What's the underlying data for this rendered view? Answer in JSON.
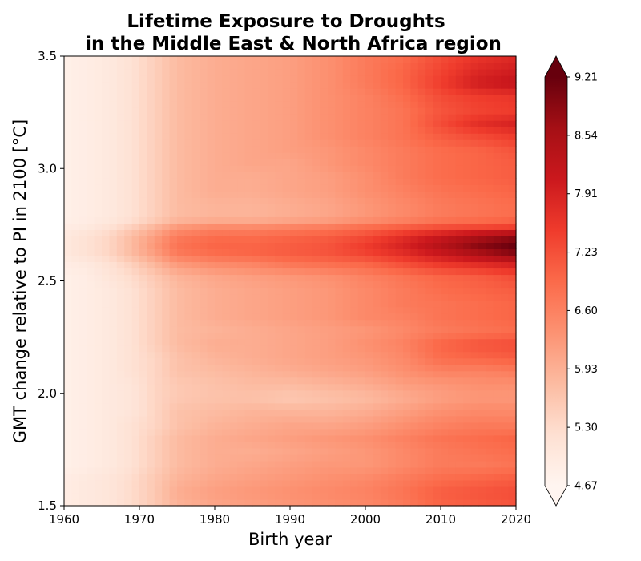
{
  "chart_data": {
    "type": "heatmap",
    "title_line1": "Lifetime Exposure to Droughts",
    "title_line2": "in the Middle East & North Africa region",
    "xlabel": "Birth year",
    "ylabel": "GMT change relative to PI in 2100 [°C]",
    "xlim": [
      1960,
      2020
    ],
    "ylim": [
      1.5,
      3.5
    ],
    "x_ticks": [
      "1960",
      "1970",
      "1980",
      "1990",
      "2000",
      "2010",
      "2020"
    ],
    "y_ticks": [
      "1.5",
      "2.0",
      "2.5",
      "3.0",
      "3.5"
    ],
    "colorbar": {
      "ticks": [
        "4.67",
        "5.30",
        "5.93",
        "6.60",
        "7.23",
        "7.91",
        "8.54",
        "9.21"
      ],
      "min": 4.67,
      "max": 9.21,
      "extend": "both",
      "colormap": "Reds"
    },
    "x": [
      1960,
      1963,
      1966,
      1969,
      1972,
      1975,
      1980,
      1985,
      1990,
      1995,
      2000,
      2005,
      2010,
      2015,
      2020
    ],
    "y": [
      1.5,
      1.56,
      1.62,
      1.68,
      1.74,
      1.8,
      1.86,
      1.92,
      1.98,
      2.04,
      2.1,
      2.16,
      2.22,
      2.28,
      2.34,
      2.4,
      2.46,
      2.52,
      2.58,
      2.62,
      2.66,
      2.7,
      2.74,
      2.78,
      2.84,
      2.9,
      2.96,
      3.02,
      3.08,
      3.14,
      3.2,
      3.26,
      3.32,
      3.38,
      3.44,
      3.5
    ],
    "z": [
      [
        4.9,
        5.0,
        5.1,
        5.3,
        5.6,
        5.9,
        6.1,
        6.2,
        6.3,
        6.4,
        6.5,
        6.7,
        7.0,
        7.1,
        7.2
      ],
      [
        4.9,
        5.0,
        5.1,
        5.3,
        5.6,
        6.0,
        6.2,
        6.3,
        6.4,
        6.5,
        6.6,
        6.8,
        7.1,
        7.2,
        7.3
      ],
      [
        4.9,
        5.0,
        5.1,
        5.3,
        5.6,
        5.9,
        6.1,
        6.2,
        6.3,
        6.4,
        6.5,
        6.7,
        6.9,
        7.0,
        7.1
      ],
      [
        4.8,
        4.9,
        5.0,
        5.2,
        5.5,
        5.8,
        6.0,
        6.1,
        6.2,
        6.3,
        6.3,
        6.5,
        6.7,
        6.7,
        6.8
      ],
      [
        4.8,
        4.9,
        5.0,
        5.2,
        5.5,
        5.8,
        6.0,
        6.0,
        6.1,
        6.2,
        6.3,
        6.5,
        6.7,
        6.8,
        6.9
      ],
      [
        4.8,
        4.9,
        5.0,
        5.2,
        5.5,
        5.8,
        6.0,
        6.1,
        6.2,
        6.3,
        6.4,
        6.6,
        6.8,
        6.9,
        7.0
      ],
      [
        4.8,
        4.9,
        5.0,
        5.2,
        5.4,
        5.7,
        5.9,
        6.0,
        6.1,
        6.1,
        6.2,
        6.4,
        6.6,
        6.7,
        6.7
      ],
      [
        4.8,
        4.9,
        5.0,
        5.1,
        5.4,
        5.7,
        5.8,
        5.9,
        5.9,
        5.9,
        6.0,
        6.2,
        6.4,
        6.5,
        6.5
      ],
      [
        4.8,
        4.9,
        5.0,
        5.1,
        5.4,
        5.6,
        5.7,
        5.7,
        5.6,
        5.7,
        5.8,
        6.0,
        6.2,
        6.3,
        6.3
      ],
      [
        4.8,
        4.9,
        5.0,
        5.1,
        5.4,
        5.6,
        5.7,
        5.8,
        5.8,
        5.9,
        6.0,
        6.2,
        6.3,
        6.4,
        6.4
      ],
      [
        4.8,
        4.9,
        5.0,
        5.2,
        5.4,
        5.7,
        5.8,
        5.9,
        6.0,
        6.1,
        6.2,
        6.4,
        6.6,
        6.6,
        6.7
      ],
      [
        4.8,
        4.9,
        5.0,
        5.2,
        5.4,
        5.7,
        5.9,
        6.0,
        6.1,
        6.2,
        6.3,
        6.5,
        6.9,
        7.0,
        7.1
      ],
      [
        4.8,
        4.9,
        5.0,
        5.2,
        5.5,
        5.8,
        6.0,
        6.0,
        6.1,
        6.2,
        6.4,
        6.6,
        7.0,
        7.2,
        7.3
      ],
      [
        4.8,
        4.9,
        5.0,
        5.2,
        5.5,
        5.8,
        5.9,
        6.0,
        6.1,
        6.2,
        6.3,
        6.5,
        6.7,
        6.8,
        6.9
      ],
      [
        4.8,
        4.9,
        5.0,
        5.2,
        5.5,
        5.8,
        6.0,
        6.1,
        6.2,
        6.3,
        6.5,
        6.6,
        6.8,
        6.9,
        7.0
      ],
      [
        4.8,
        4.9,
        5.0,
        5.2,
        5.5,
        5.8,
        6.0,
        6.1,
        6.2,
        6.3,
        6.5,
        6.7,
        6.8,
        6.9,
        7.0
      ],
      [
        4.8,
        4.9,
        5.0,
        5.2,
        5.5,
        5.8,
        6.0,
        6.1,
        6.2,
        6.3,
        6.5,
        6.7,
        6.9,
        7.0,
        7.1
      ],
      [
        4.8,
        4.9,
        5.1,
        5.3,
        5.6,
        5.9,
        6.1,
        6.2,
        6.3,
        6.4,
        6.6,
        6.8,
        7.0,
        7.1,
        7.3
      ],
      [
        4.9,
        5.0,
        5.2,
        5.5,
        5.9,
        6.3,
        6.5,
        6.6,
        6.8,
        6.9,
        7.0,
        7.3,
        7.6,
        7.8,
        8.0
      ],
      [
        5.0,
        5.2,
        5.4,
        5.8,
        6.2,
        6.7,
        6.9,
        7.0,
        7.1,
        7.2,
        7.4,
        7.7,
        8.1,
        8.5,
        8.9
      ],
      [
        5.0,
        5.2,
        5.4,
        5.8,
        6.3,
        6.8,
        7.0,
        7.0,
        7.1,
        7.2,
        7.5,
        7.9,
        8.4,
        8.9,
        9.21
      ],
      [
        5.0,
        5.2,
        5.4,
        5.8,
        6.2,
        6.7,
        6.9,
        6.9,
        7.0,
        7.1,
        7.3,
        7.7,
        8.1,
        8.5,
        8.8
      ],
      [
        4.9,
        5.0,
        5.2,
        5.5,
        5.9,
        6.3,
        6.5,
        6.5,
        6.6,
        6.7,
        6.9,
        7.1,
        7.3,
        7.4,
        7.5
      ],
      [
        4.8,
        4.9,
        5.0,
        5.2,
        5.5,
        5.8,
        5.9,
        5.9,
        6.0,
        6.1,
        6.3,
        6.5,
        6.7,
        6.8,
        6.9
      ],
      [
        4.8,
        4.9,
        5.0,
        5.2,
        5.5,
        5.8,
        5.9,
        5.9,
        6.0,
        6.1,
        6.3,
        6.5,
        6.7,
        6.8,
        6.9
      ],
      [
        4.8,
        4.9,
        5.0,
        5.2,
        5.5,
        5.8,
        6.0,
        6.0,
        6.1,
        6.2,
        6.4,
        6.6,
        6.8,
        6.9,
        7.0
      ],
      [
        4.8,
        4.9,
        5.0,
        5.2,
        5.5,
        5.8,
        6.0,
        6.0,
        6.1,
        6.2,
        6.4,
        6.7,
        6.9,
        7.0,
        7.1
      ],
      [
        4.8,
        4.9,
        5.0,
        5.2,
        5.5,
        5.8,
        6.0,
        6.1,
        6.1,
        6.3,
        6.5,
        6.7,
        6.9,
        7.0,
        7.1
      ],
      [
        4.8,
        4.9,
        5.0,
        5.2,
        5.5,
        5.8,
        6.0,
        6.1,
        6.2,
        6.3,
        6.5,
        6.7,
        6.9,
        7.0,
        7.2
      ],
      [
        4.8,
        4.9,
        5.0,
        5.2,
        5.5,
        5.8,
        6.0,
        6.1,
        6.2,
        6.4,
        6.6,
        6.8,
        7.1,
        7.3,
        7.5
      ],
      [
        4.8,
        4.9,
        5.0,
        5.2,
        5.5,
        5.8,
        6.0,
        6.1,
        6.2,
        6.4,
        6.6,
        6.8,
        7.3,
        7.7,
        7.9
      ],
      [
        4.8,
        4.9,
        5.0,
        5.2,
        5.5,
        5.8,
        6.0,
        6.1,
        6.2,
        6.4,
        6.6,
        6.8,
        7.2,
        7.4,
        7.5
      ],
      [
        4.8,
        4.9,
        5.0,
        5.2,
        5.5,
        5.8,
        6.0,
        6.1,
        6.2,
        6.4,
        6.6,
        6.9,
        7.3,
        7.5,
        7.6
      ],
      [
        4.8,
        4.9,
        5.0,
        5.2,
        5.5,
        5.8,
        6.0,
        6.1,
        6.2,
        6.4,
        6.7,
        7.0,
        7.5,
        8.0,
        8.2
      ],
      [
        4.8,
        4.9,
        5.0,
        5.2,
        5.5,
        5.8,
        6.0,
        6.1,
        6.2,
        6.4,
        6.7,
        7.0,
        7.4,
        7.8,
        8.0
      ],
      [
        4.8,
        4.9,
        5.0,
        5.2,
        5.5,
        5.8,
        6.0,
        6.1,
        6.2,
        6.4,
        6.7,
        6.9,
        7.3,
        7.6,
        7.8
      ]
    ]
  }
}
